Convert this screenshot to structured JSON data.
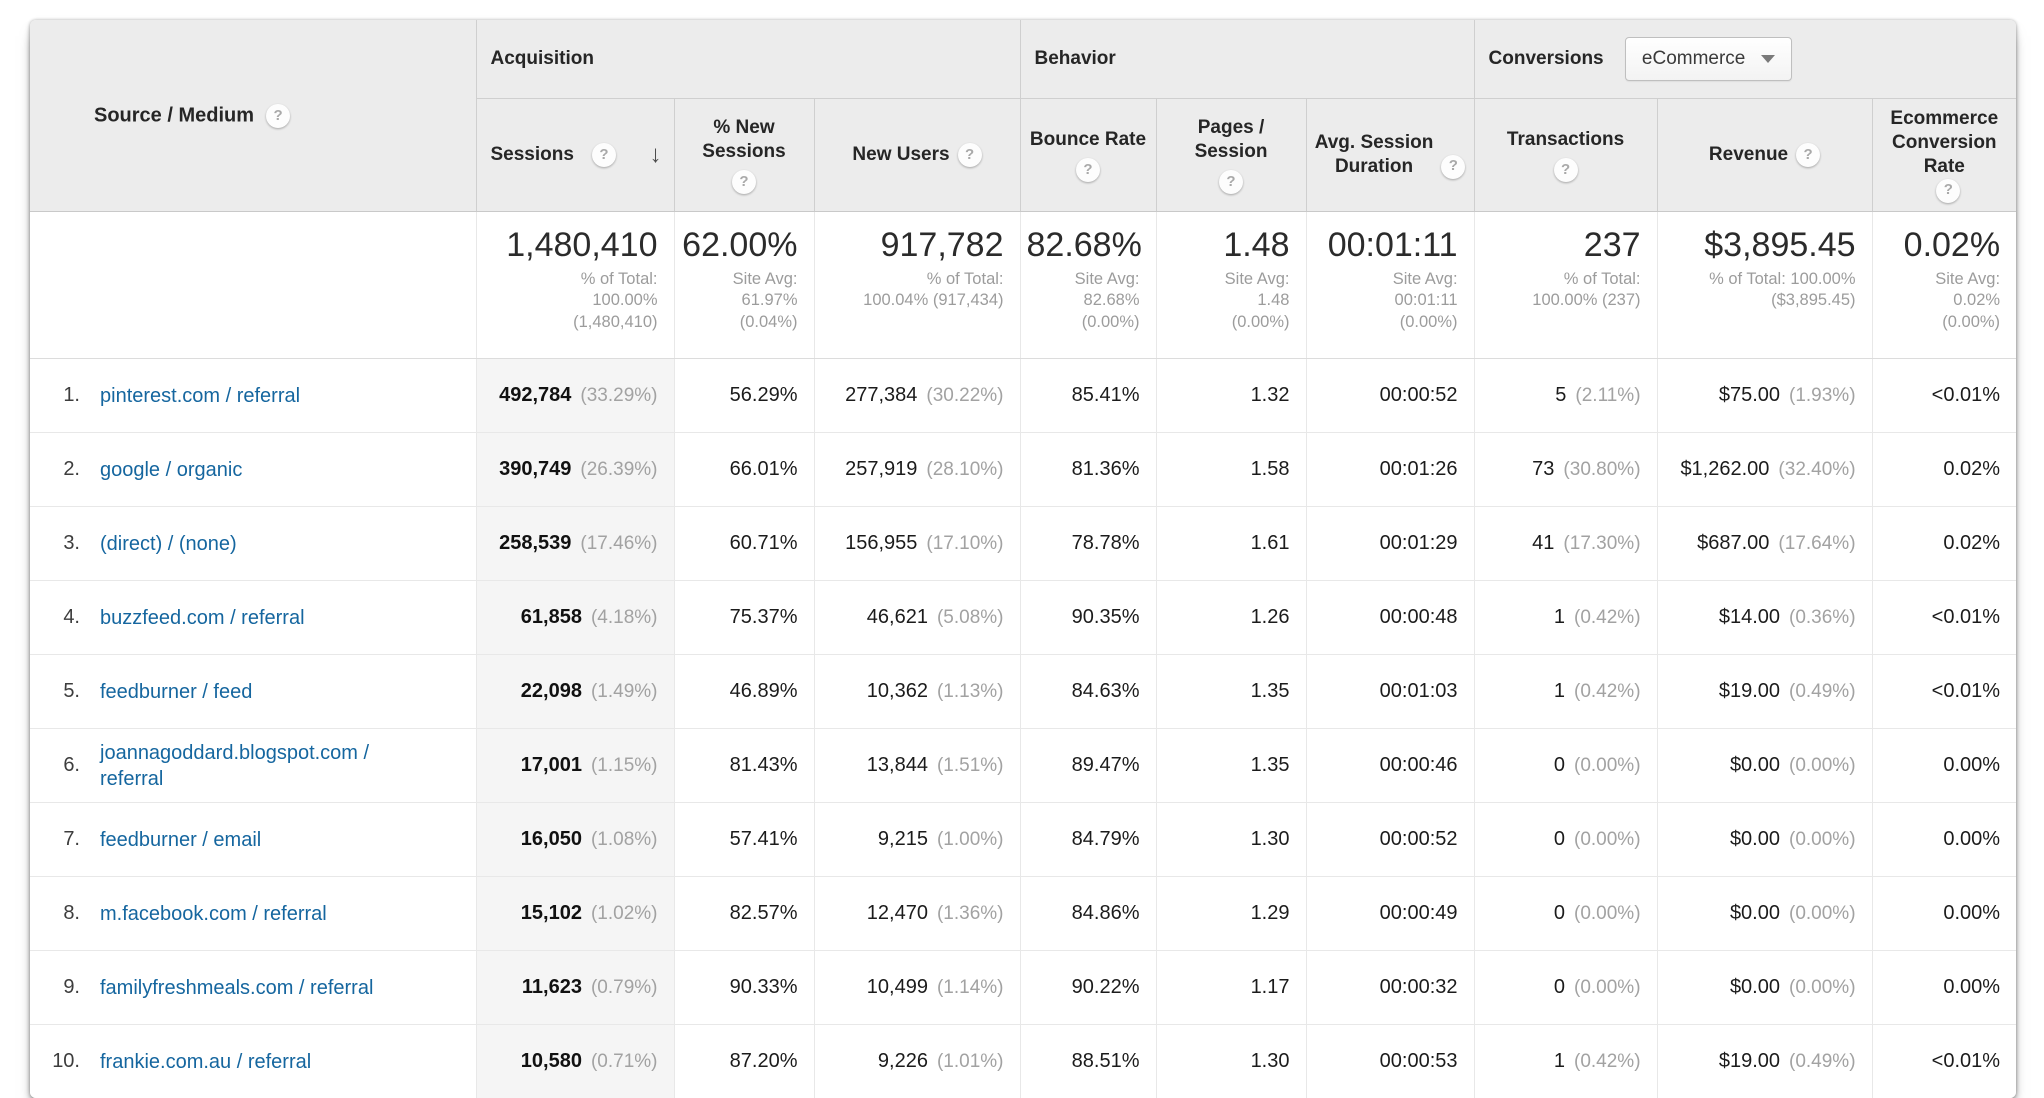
{
  "icons": {
    "help": "?",
    "sort_descending": "↓"
  },
  "colors": {
    "link": "#15669f",
    "header_bg": "#ececec",
    "sorted_column_bg": "#f5f5f5",
    "value_text": "#1b1b1b",
    "muted_text": "#9c9c9c"
  },
  "table": {
    "dimension_header": "Source / Medium",
    "groups": {
      "acquisition": "Acquisition",
      "behavior": "Behavior",
      "conversions": "Conversions"
    },
    "conversions_selector": {
      "selected": "eCommerce"
    },
    "columns": {
      "sessions": {
        "label": "Sessions",
        "sorted": "descending"
      },
      "pct_new_sessions": {
        "lines": [
          "% New",
          "Sessions"
        ]
      },
      "new_users": {
        "label": "New Users"
      },
      "bounce_rate": {
        "label": "Bounce Rate"
      },
      "pages_session": {
        "lines": [
          "Pages /",
          "Session"
        ]
      },
      "avg_session_duration": {
        "lines": [
          "Avg. Session",
          "Duration"
        ]
      },
      "transactions": {
        "label": "Transactions"
      },
      "revenue": {
        "label": "Revenue"
      },
      "ecommerce_conversion_rate": {
        "lines": [
          "Ecommerce",
          "Conversion",
          "Rate"
        ]
      }
    },
    "totals": {
      "sessions": {
        "value": "1,480,410",
        "note_lines": [
          "% of Total:",
          "100.00%",
          "(1,480,410)"
        ]
      },
      "pct_new_sessions": {
        "value": "62.00%",
        "note_lines": [
          "Site Avg:",
          "61.97%",
          "(0.04%)"
        ]
      },
      "new_users": {
        "value": "917,782",
        "note_lines": [
          "% of Total:",
          "100.04% (917,434)"
        ]
      },
      "bounce_rate": {
        "value": "82.68%",
        "note_lines": [
          "Site Avg:",
          "82.68%",
          "(0.00%)"
        ]
      },
      "pages_session": {
        "value": "1.48",
        "note_lines": [
          "Site Avg:",
          "1.48",
          "(0.00%)"
        ]
      },
      "avg_session_duration": {
        "value": "00:01:11",
        "note_lines": [
          "Site Avg:",
          "00:01:11",
          "(0.00%)"
        ]
      },
      "transactions": {
        "value": "237",
        "note_lines": [
          "% of Total:",
          "100.00% (237)"
        ]
      },
      "revenue": {
        "value": "$3,895.45",
        "note_lines": [
          "% of Total: 100.00%",
          "($3,895.45)"
        ]
      },
      "ecommerce_conversion_rate": {
        "value": "0.02%",
        "note_lines": [
          "Site Avg:",
          "0.02%",
          "(0.00%)"
        ]
      }
    },
    "rows": [
      {
        "rank": "1.",
        "source": "pinterest.com / referral",
        "sessions": "492,784",
        "sessions_pct": "(33.29%)",
        "pct_new_sessions": "56.29%",
        "new_users": "277,384",
        "new_users_pct": "(30.22%)",
        "bounce_rate": "85.41%",
        "pages_per_session": "1.32",
        "avg_session_duration": "00:00:52",
        "transactions": "5",
        "transactions_pct": "(2.11%)",
        "revenue": "$75.00",
        "revenue_pct": "(1.93%)",
        "ecommerce_conversion_rate": "<0.01%"
      },
      {
        "rank": "2.",
        "source": "google / organic",
        "sessions": "390,749",
        "sessions_pct": "(26.39%)",
        "pct_new_sessions": "66.01%",
        "new_users": "257,919",
        "new_users_pct": "(28.10%)",
        "bounce_rate": "81.36%",
        "pages_per_session": "1.58",
        "avg_session_duration": "00:01:26",
        "transactions": "73",
        "transactions_pct": "(30.80%)",
        "revenue": "$1,262.00",
        "revenue_pct": "(32.40%)",
        "ecommerce_conversion_rate": "0.02%"
      },
      {
        "rank": "3.",
        "source": "(direct) / (none)",
        "sessions": "258,539",
        "sessions_pct": "(17.46%)",
        "pct_new_sessions": "60.71%",
        "new_users": "156,955",
        "new_users_pct": "(17.10%)",
        "bounce_rate": "78.78%",
        "pages_per_session": "1.61",
        "avg_session_duration": "00:01:29",
        "transactions": "41",
        "transactions_pct": "(17.30%)",
        "revenue": "$687.00",
        "revenue_pct": "(17.64%)",
        "ecommerce_conversion_rate": "0.02%"
      },
      {
        "rank": "4.",
        "source": "buzzfeed.com / referral",
        "sessions": "61,858",
        "sessions_pct": "(4.18%)",
        "pct_new_sessions": "75.37%",
        "new_users": "46,621",
        "new_users_pct": "(5.08%)",
        "bounce_rate": "90.35%",
        "pages_per_session": "1.26",
        "avg_session_duration": "00:00:48",
        "transactions": "1",
        "transactions_pct": "(0.42%)",
        "revenue": "$14.00",
        "revenue_pct": "(0.36%)",
        "ecommerce_conversion_rate": "<0.01%"
      },
      {
        "rank": "5.",
        "source": "feedburner / feed",
        "sessions": "22,098",
        "sessions_pct": "(1.49%)",
        "pct_new_sessions": "46.89%",
        "new_users": "10,362",
        "new_users_pct": "(1.13%)",
        "bounce_rate": "84.63%",
        "pages_per_session": "1.35",
        "avg_session_duration": "00:01:03",
        "transactions": "1",
        "transactions_pct": "(0.42%)",
        "revenue": "$19.00",
        "revenue_pct": "(0.49%)",
        "ecommerce_conversion_rate": "<0.01%"
      },
      {
        "rank": "6.",
        "source": "joannagoddard.blogspot.com / referral",
        "sessions": "17,001",
        "sessions_pct": "(1.15%)",
        "pct_new_sessions": "81.43%",
        "new_users": "13,844",
        "new_users_pct": "(1.51%)",
        "bounce_rate": "89.47%",
        "pages_per_session": "1.35",
        "avg_session_duration": "00:00:46",
        "transactions": "0",
        "transactions_pct": "(0.00%)",
        "revenue": "$0.00",
        "revenue_pct": "(0.00%)",
        "ecommerce_conversion_rate": "0.00%"
      },
      {
        "rank": "7.",
        "source": "feedburner / email",
        "sessions": "16,050",
        "sessions_pct": "(1.08%)",
        "pct_new_sessions": "57.41%",
        "new_users": "9,215",
        "new_users_pct": "(1.00%)",
        "bounce_rate": "84.79%",
        "pages_per_session": "1.30",
        "avg_session_duration": "00:00:52",
        "transactions": "0",
        "transactions_pct": "(0.00%)",
        "revenue": "$0.00",
        "revenue_pct": "(0.00%)",
        "ecommerce_conversion_rate": "0.00%"
      },
      {
        "rank": "8.",
        "source": "m.facebook.com / referral",
        "sessions": "15,102",
        "sessions_pct": "(1.02%)",
        "pct_new_sessions": "82.57%",
        "new_users": "12,470",
        "new_users_pct": "(1.36%)",
        "bounce_rate": "84.86%",
        "pages_per_session": "1.29",
        "avg_session_duration": "00:00:49",
        "transactions": "0",
        "transactions_pct": "(0.00%)",
        "revenue": "$0.00",
        "revenue_pct": "(0.00%)",
        "ecommerce_conversion_rate": "0.00%"
      },
      {
        "rank": "9.",
        "source": "familyfreshmeals.com / referral",
        "sessions": "11,623",
        "sessions_pct": "(0.79%)",
        "pct_new_sessions": "90.33%",
        "new_users": "10,499",
        "new_users_pct": "(1.14%)",
        "bounce_rate": "90.22%",
        "pages_per_session": "1.17",
        "avg_session_duration": "00:00:32",
        "transactions": "0",
        "transactions_pct": "(0.00%)",
        "revenue": "$0.00",
        "revenue_pct": "(0.00%)",
        "ecommerce_conversion_rate": "0.00%"
      },
      {
        "rank": "10.",
        "source": "frankie.com.au / referral",
        "sessions": "10,580",
        "sessions_pct": "(0.71%)",
        "pct_new_sessions": "87.20%",
        "new_users": "9,226",
        "new_users_pct": "(1.01%)",
        "bounce_rate": "88.51%",
        "pages_per_session": "1.30",
        "avg_session_duration": "00:00:53",
        "transactions": "1",
        "transactions_pct": "(0.42%)",
        "revenue": "$19.00",
        "revenue_pct": "(0.49%)",
        "ecommerce_conversion_rate": "<0.01%"
      }
    ]
  }
}
